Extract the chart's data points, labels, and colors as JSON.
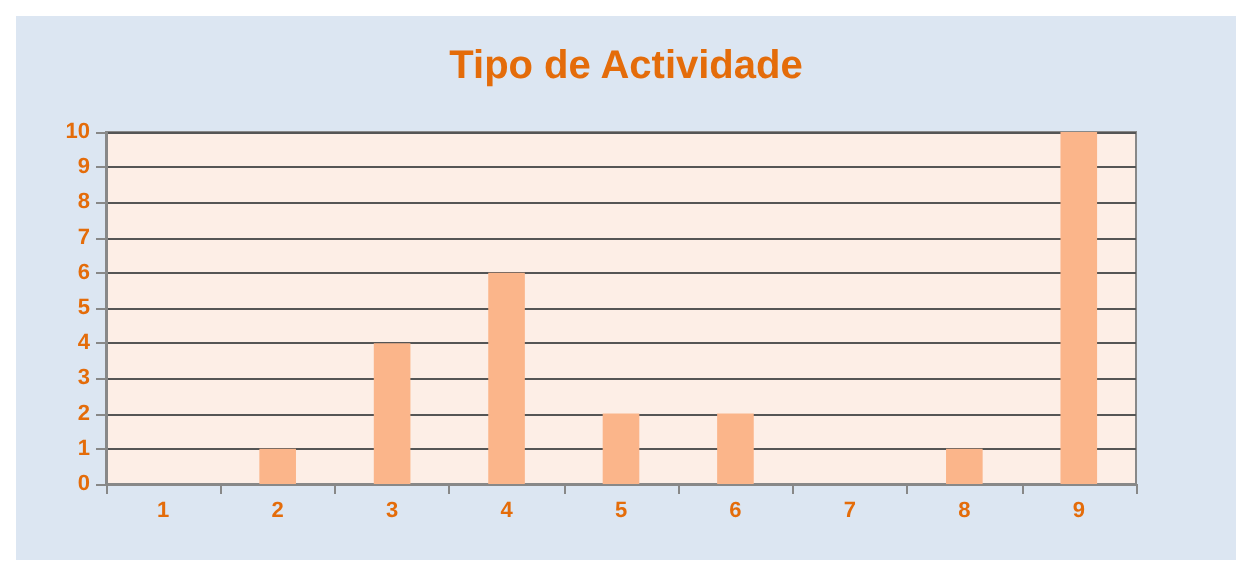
{
  "chart_data": {
    "type": "bar",
    "title": "Tipo de Actividade",
    "categories": [
      "1",
      "2",
      "3",
      "4",
      "5",
      "6",
      "7",
      "8",
      "9"
    ],
    "values": [
      0,
      1,
      4,
      6,
      2,
      2,
      0,
      1,
      10
    ],
    "color": "#fbb58a",
    "ylim": [
      0,
      10
    ],
    "yticks": [
      0,
      1,
      2,
      3,
      4,
      5,
      6,
      7,
      8,
      9,
      10
    ],
    "grid": "y"
  }
}
